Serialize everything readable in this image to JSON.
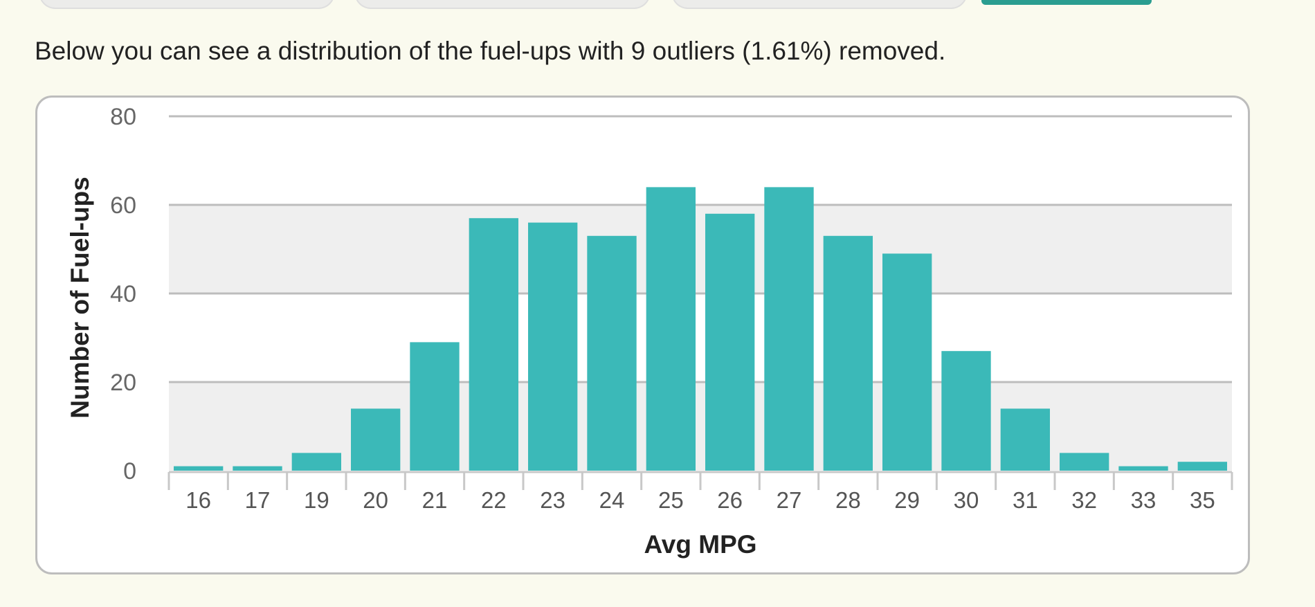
{
  "intro_text": "Below you can see a distribution of the fuel-ups with 9 outliers (1.61%) removed.",
  "colors": {
    "bar": "#3bb9b8",
    "accent": "#2a9d90",
    "background": "#fafaee"
  },
  "chart_data": {
    "type": "bar",
    "xlabel": "Avg MPG",
    "ylabel": "Number of Fuel-ups",
    "ylim": [
      0,
      80
    ],
    "yticks": [
      0,
      20,
      40,
      60,
      80
    ],
    "grid": "horizontal, alternating bands",
    "categories": [
      "16",
      "17",
      "19",
      "20",
      "21",
      "22",
      "23",
      "24",
      "25",
      "26",
      "27",
      "28",
      "29",
      "30",
      "31",
      "32",
      "33",
      "35"
    ],
    "values": [
      1,
      1,
      4,
      14,
      29,
      57,
      56,
      53,
      64,
      58,
      64,
      53,
      49,
      27,
      14,
      4,
      1,
      2
    ]
  }
}
